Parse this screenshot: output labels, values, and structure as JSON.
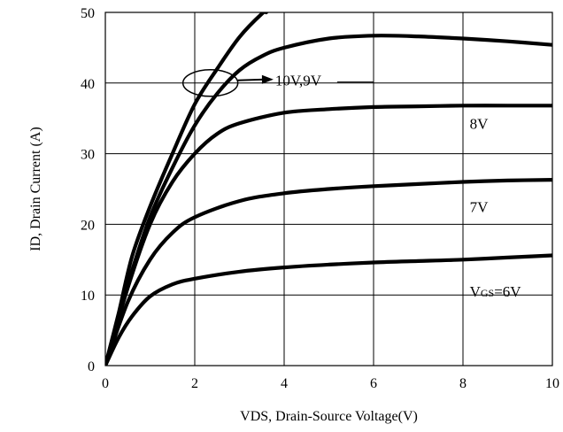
{
  "chart_data": {
    "type": "line",
    "title": "",
    "xlabel": "VDS, Drain-Source Voltage(V)",
    "ylabel": "ID, Drain Current (A)",
    "xlim": [
      0,
      10
    ],
    "ylim": [
      0,
      50
    ],
    "xticks": [
      "0",
      "2",
      "4",
      "6",
      "8",
      "10"
    ],
    "yticks": [
      "0",
      "10",
      "20",
      "30",
      "40",
      "50"
    ],
    "grid": true,
    "series": [
      {
        "name": "10V,9V",
        "x": [
          0,
          0.3,
          0.6,
          1.0,
          1.5,
          2.0,
          2.5,
          3.0,
          3.5,
          3.6
        ],
        "y": [
          0,
          7.5,
          15.5,
          22.5,
          30,
          37,
          42,
          46.5,
          49.8,
          50
        ]
      },
      {
        "name": "",
        "x": [
          0,
          0.3,
          0.6,
          1.0,
          1.5,
          2.0,
          2.5,
          3.0,
          3.5,
          4,
          5,
          6,
          7,
          8,
          9,
          10
        ],
        "y": [
          0,
          7,
          13.5,
          21,
          28,
          34,
          38.5,
          41.8,
          43.8,
          45,
          46.3,
          46.7,
          46.6,
          46.3,
          45.9,
          45.4
        ]
      },
      {
        "name": "8V",
        "x": [
          0,
          0.5,
          1.0,
          1.5,
          2.0,
          2.5,
          3.0,
          4,
          5,
          6,
          7,
          8,
          9,
          10
        ],
        "y": [
          0,
          11,
          20,
          26,
          30,
          32.8,
          34.3,
          35.8,
          36.3,
          36.6,
          36.7,
          36.8,
          36.8,
          36.8
        ]
      },
      {
        "name": "7V",
        "x": [
          0,
          0.5,
          1.0,
          1.5,
          2.0,
          3,
          4,
          5,
          6,
          7,
          8,
          9,
          10
        ],
        "y": [
          0,
          9,
          15,
          18.8,
          21,
          23.3,
          24.4,
          25,
          25.4,
          25.7,
          26,
          26.2,
          26.3
        ]
      },
      {
        "name": "VGS=6V",
        "x": [
          0,
          0.3,
          0.6,
          1.0,
          1.5,
          2.0,
          3,
          4,
          5,
          6,
          7,
          8,
          9,
          10
        ],
        "y": [
          0,
          4,
          7,
          9.8,
          11.5,
          12.3,
          13.3,
          13.9,
          14.3,
          14.6,
          14.8,
          15,
          15.3,
          15.6
        ]
      }
    ],
    "annotations": [
      {
        "text": "10V,9V",
        "x": 3.8,
        "y": 40.4
      },
      {
        "text": "8V",
        "x": 8.15,
        "y": 34.3
      },
      {
        "text": "7V",
        "x": 8.15,
        "y": 22.5
      },
      {
        "text": "VGS=6V",
        "x": 8.15,
        "y": 10.5
      }
    ]
  }
}
